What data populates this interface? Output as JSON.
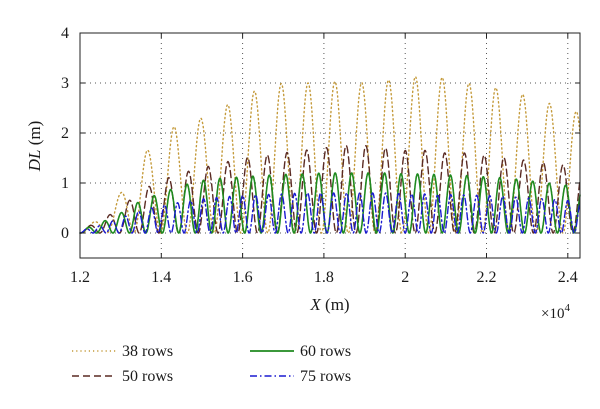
{
  "chart_data": {
    "type": "line",
    "x_axis": {
      "label": "X (m)",
      "label_var": "X",
      "label_unit": " (m)",
      "range": [
        12000,
        24300
      ],
      "ticks": [
        12000,
        14000,
        16000,
        18000,
        20000,
        22000,
        24000
      ],
      "tick_labels": [
        "1.2",
        "1.4",
        "1.6",
        "1.8",
        "2",
        "2.2",
        "2.4"
      ],
      "multiplier_base": "×10",
      "multiplier_exp": "4"
    },
    "y_axis": {
      "label": "DL (m)",
      "label_var": "DL",
      "label_unit": " (m)",
      "range": [
        -0.5,
        4
      ],
      "ticks": [
        0,
        1,
        2,
        3,
        4
      ],
      "tick_labels": [
        "0",
        "1",
        "2",
        "3",
        "4"
      ]
    },
    "grid": true,
    "legend_position": "bottom",
    "series": [
      {
        "name": "38 rows",
        "color": "#c49a3a",
        "dash": "1.2,3",
        "envelope": [
          [
            12000,
            0.05
          ],
          [
            12500,
            0.3
          ],
          [
            13000,
            0.8
          ],
          [
            13500,
            1.5
          ],
          [
            14000,
            2.0
          ],
          [
            14500,
            2.2
          ],
          [
            15000,
            2.3
          ],
          [
            15500,
            2.5
          ],
          [
            16000,
            2.75
          ],
          [
            16500,
            2.9
          ],
          [
            17000,
            3.0
          ],
          [
            17500,
            3.0
          ],
          [
            18000,
            3.0
          ],
          [
            18500,
            3.05
          ],
          [
            19000,
            3.0
          ],
          [
            19500,
            3.05
          ],
          [
            20000,
            3.1
          ],
          [
            20500,
            3.15
          ],
          [
            21000,
            3.1
          ],
          [
            21500,
            3.0
          ],
          [
            22000,
            2.95
          ],
          [
            22500,
            2.85
          ],
          [
            23000,
            2.75
          ],
          [
            23500,
            2.6
          ],
          [
            24000,
            2.5
          ],
          [
            24300,
            2.4
          ]
        ]
      },
      {
        "name": "50 rows",
        "color": "#5a2a22",
        "dash": "7,4",
        "envelope": [
          [
            12000,
            0.05
          ],
          [
            12500,
            0.25
          ],
          [
            13000,
            0.5
          ],
          [
            13500,
            0.85
          ],
          [
            14000,
            1.05
          ],
          [
            14500,
            1.2
          ],
          [
            15000,
            1.3
          ],
          [
            15500,
            1.4
          ],
          [
            16000,
            1.5
          ],
          [
            16500,
            1.55
          ],
          [
            17000,
            1.6
          ],
          [
            17500,
            1.65
          ],
          [
            18000,
            1.7
          ],
          [
            18500,
            1.75
          ],
          [
            19000,
            1.75
          ],
          [
            19500,
            1.7
          ],
          [
            20000,
            1.65
          ],
          [
            20500,
            1.65
          ],
          [
            21000,
            1.6
          ],
          [
            21500,
            1.6
          ],
          [
            22000,
            1.55
          ],
          [
            22500,
            1.5
          ],
          [
            23000,
            1.45
          ],
          [
            23500,
            1.4
          ],
          [
            24000,
            1.35
          ],
          [
            24300,
            1.3
          ]
        ]
      },
      {
        "name": "60 rows",
        "color": "#1f8a1f",
        "dash": "",
        "envelope": [
          [
            12000,
            0.05
          ],
          [
            12500,
            0.2
          ],
          [
            13000,
            0.4
          ],
          [
            13500,
            0.65
          ],
          [
            14000,
            0.8
          ],
          [
            14500,
            0.95
          ],
          [
            15000,
            1.05
          ],
          [
            15500,
            1.1
          ],
          [
            16000,
            1.12
          ],
          [
            16500,
            1.15
          ],
          [
            17000,
            1.17
          ],
          [
            17500,
            1.18
          ],
          [
            18000,
            1.2
          ],
          [
            18500,
            1.2
          ],
          [
            19000,
            1.2
          ],
          [
            19500,
            1.2
          ],
          [
            20000,
            1.18
          ],
          [
            20500,
            1.18
          ],
          [
            21000,
            1.16
          ],
          [
            21500,
            1.15
          ],
          [
            22000,
            1.12
          ],
          [
            22500,
            1.1
          ],
          [
            23000,
            1.05
          ],
          [
            23500,
            1.0
          ],
          [
            24000,
            0.95
          ],
          [
            24300,
            0.9
          ]
        ]
      },
      {
        "name": "75 rows",
        "color": "#1a1ad0",
        "dash": "7,3,1.5,3",
        "envelope": [
          [
            12000,
            0.05
          ],
          [
            12500,
            0.15
          ],
          [
            13000,
            0.3
          ],
          [
            13500,
            0.45
          ],
          [
            14000,
            0.55
          ],
          [
            14500,
            0.62
          ],
          [
            15000,
            0.68
          ],
          [
            15500,
            0.72
          ],
          [
            16000,
            0.75
          ],
          [
            16500,
            0.77
          ],
          [
            17000,
            0.78
          ],
          [
            17500,
            0.8
          ],
          [
            18000,
            0.8
          ],
          [
            18500,
            0.8
          ],
          [
            19000,
            0.8
          ],
          [
            19500,
            0.8
          ],
          [
            20000,
            0.78
          ],
          [
            20500,
            0.78
          ],
          [
            21000,
            0.77
          ],
          [
            21500,
            0.76
          ],
          [
            22000,
            0.75
          ],
          [
            22500,
            0.73
          ],
          [
            23000,
            0.7
          ],
          [
            23500,
            0.68
          ],
          [
            24000,
            0.65
          ],
          [
            24300,
            0.62
          ]
        ]
      }
    ]
  }
}
